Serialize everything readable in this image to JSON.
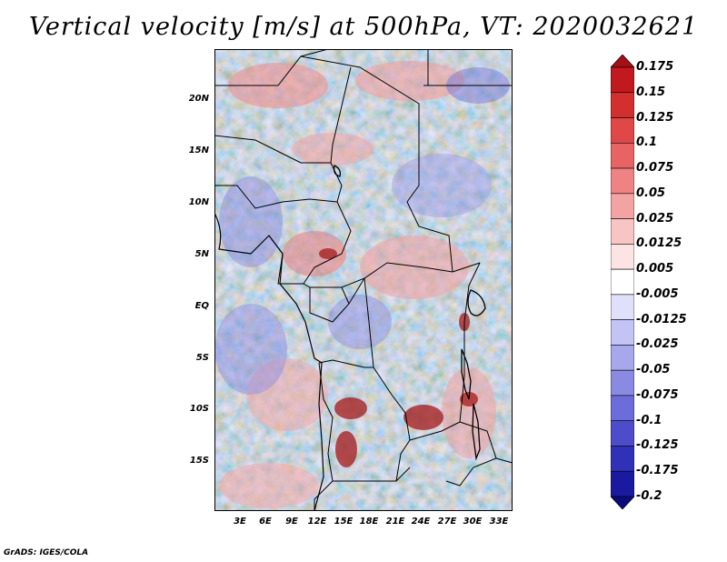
{
  "title": "Vertical velocity [m/s] at 500hPa, VT: 2020032621",
  "lat_ticks": [
    "20N",
    "15N",
    "10N",
    "5N",
    "EQ",
    "5S",
    "10S",
    "15S"
  ],
  "lon_ticks": [
    "3E",
    "6E",
    "9E",
    "12E",
    "15E",
    "18E",
    "21E",
    "24E",
    "27E",
    "30E",
    "33E"
  ],
  "colorbar": {
    "labels": [
      "0.175",
      "0.15",
      "0.125",
      "0.1",
      "0.075",
      "0.05",
      "0.025",
      "0.0125",
      "0.005",
      "-0.005",
      "-0.0125",
      "-0.025",
      "-0.05",
      "-0.075",
      "-0.1",
      "-0.125",
      "-0.175",
      "-0.2"
    ],
    "colors": [
      "#a50f15",
      "#c2191e",
      "#d32f2f",
      "#e04848",
      "#e86464",
      "#ef8383",
      "#f4a3a3",
      "#f8c4c4",
      "#fce4e4",
      "#ffffff",
      "#e0e0fa",
      "#c3c3f4",
      "#a7a7ec",
      "#8a8ae3",
      "#6c6cda",
      "#4d4dcc",
      "#3030b8",
      "#1a1aa0",
      "#0b0b7a"
    ]
  },
  "credit": "GrADS: IGES/COLA"
}
